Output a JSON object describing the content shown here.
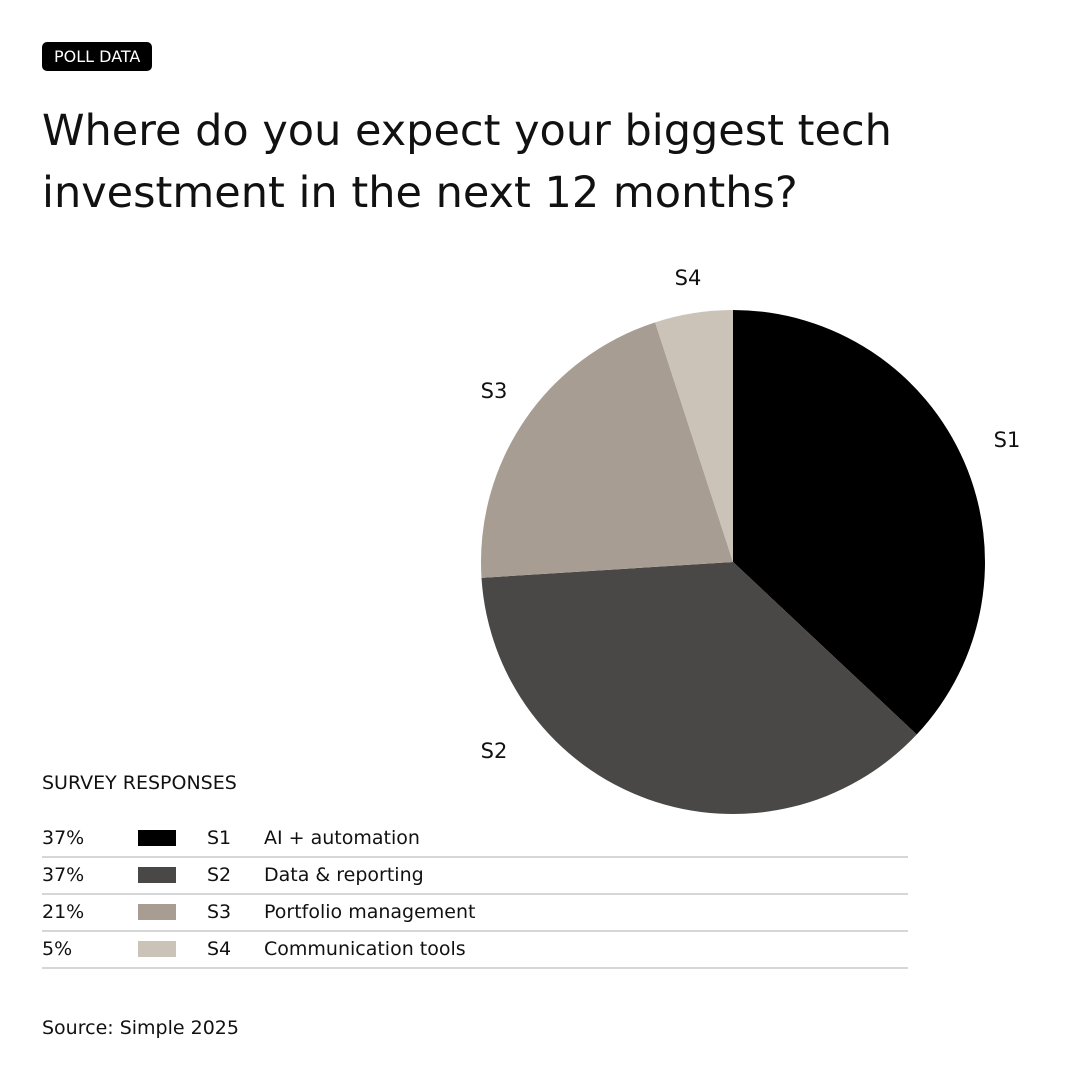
{
  "badge": "POLL DATA",
  "title": "Where do you expect your biggest tech investment in the next 12 months?",
  "legend_title": "SURVEY RESPONSES",
  "source": "Source: Simple 2025",
  "chart_data": {
    "type": "pie",
    "start": "top, clockwise",
    "slices": [
      {
        "id": "S1",
        "label": "AI + automation",
        "value": 37,
        "pct": "37%",
        "color": "#000000"
      },
      {
        "id": "S2",
        "label": "Data & reporting",
        "value": 37,
        "pct": "37%",
        "color": "#4a4846"
      },
      {
        "id": "S3",
        "label": "Portfolio management",
        "value": 21,
        "pct": "21%",
        "color": "#a89d92"
      },
      {
        "id": "S4",
        "label": "Communication tools",
        "value": 5,
        "pct": "5%",
        "color": "#cbc2b8"
      }
    ]
  }
}
